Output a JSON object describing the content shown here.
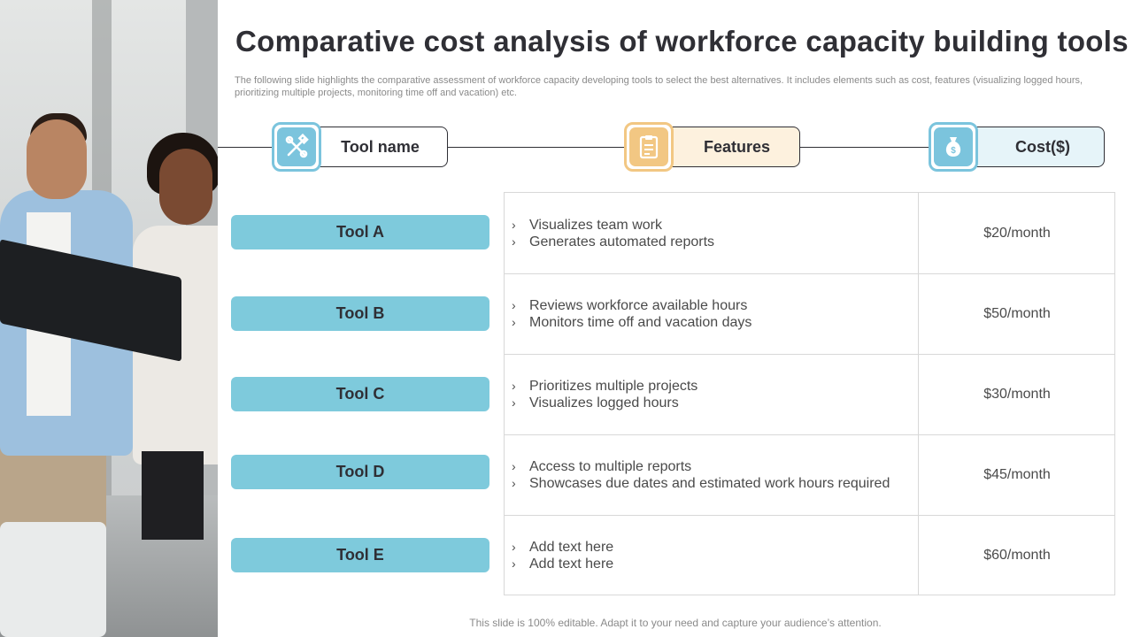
{
  "title": "Comparative cost analysis of workforce capacity building tools",
  "subtitle": "The following slide highlights the comparative assessment of workforce capacity developing tools to select the best alternatives. It includes elements such as cost, features (visualizing logged hours, prioritizing multiple projects, monitoring time off and vacation) etc.",
  "headers": {
    "tool_name": "Tool name",
    "features": "Features",
    "cost": "Cost($)"
  },
  "icons": {
    "tool_name": "tools-icon",
    "features": "clipboard-icon",
    "cost": "money-bag-icon"
  },
  "colors": {
    "accent_blue": "#7ecadc",
    "accent_gold": "#f2c783",
    "text_dark": "#2f2f35"
  },
  "rows": [
    {
      "tool": "Tool A",
      "features": [
        "Visualizes team work",
        "Generates automated reports"
      ],
      "cost": "$20/month"
    },
    {
      "tool": "Tool B",
      "features": [
        "Reviews workforce available hours",
        "Monitors time off and vacation days"
      ],
      "cost": "$50/month"
    },
    {
      "tool": "Tool C",
      "features": [
        "Prioritizes multiple projects",
        "Visualizes logged hours"
      ],
      "cost": "$30/month"
    },
    {
      "tool": "Tool D",
      "features": [
        "Access to multiple reports",
        "Showcases due dates and estimated work hours required"
      ],
      "cost": "$45/month"
    },
    {
      "tool": "Tool E",
      "features": [
        "Add text here",
        "Add text here"
      ],
      "cost": "$60/month"
    }
  ],
  "footer": "This slide is 100% editable. Adapt it to your need and capture your audience’s attention."
}
